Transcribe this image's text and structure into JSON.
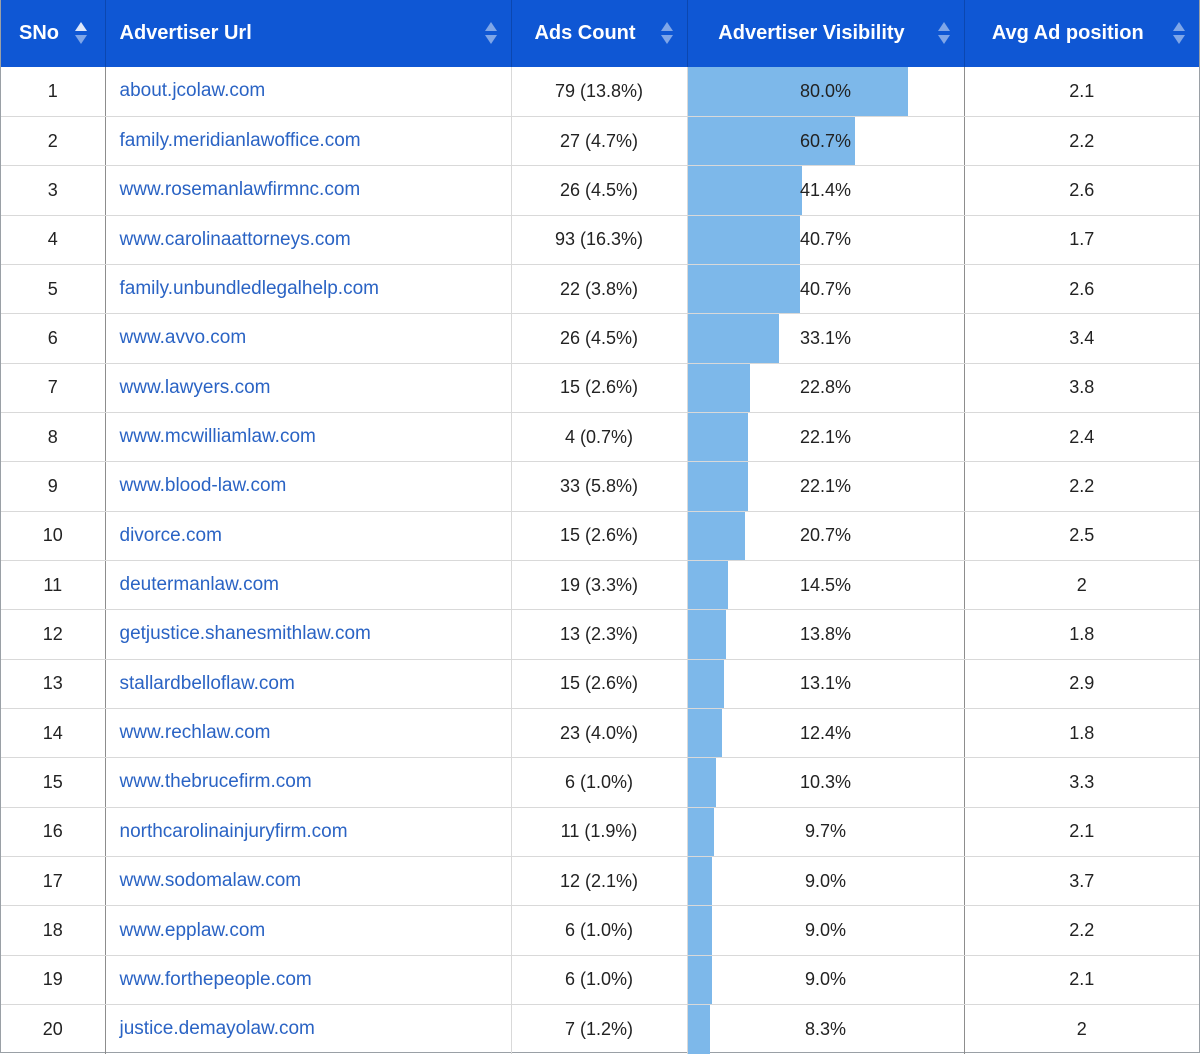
{
  "table": {
    "headers": {
      "sno": "SNo",
      "url": "Advertiser Url",
      "ads": "Ads Count",
      "visibility": "Advertiser Visibility",
      "position": "Avg Ad position"
    },
    "colors": {
      "header_bg": "#0f57d4",
      "bar": "#7db8ea",
      "link": "#2a63c4"
    },
    "sort_icon": "sort-arrows-icon",
    "rows": [
      {
        "sno": "1",
        "url": "about.jcolaw.com",
        "ads": "79 (13.8%)",
        "visibility": "80.0%",
        "vis_value": 80.0,
        "position": "2.1"
      },
      {
        "sno": "2",
        "url": "family.meridianlawoffice.com",
        "ads": "27 (4.7%)",
        "visibility": "60.7%",
        "vis_value": 60.7,
        "position": "2.2"
      },
      {
        "sno": "3",
        "url": "www.rosemanlawfirmnc.com",
        "ads": "26 (4.5%)",
        "visibility": "41.4%",
        "vis_value": 41.4,
        "position": "2.6"
      },
      {
        "sno": "4",
        "url": "www.carolinaattorneys.com",
        "ads": "93 (16.3%)",
        "visibility": "40.7%",
        "vis_value": 40.7,
        "position": "1.7"
      },
      {
        "sno": "5",
        "url": "family.unbundledlegalhelp.com",
        "ads": "22 (3.8%)",
        "visibility": "40.7%",
        "vis_value": 40.7,
        "position": "2.6"
      },
      {
        "sno": "6",
        "url": "www.avvo.com",
        "ads": "26 (4.5%)",
        "visibility": "33.1%",
        "vis_value": 33.1,
        "position": "3.4"
      },
      {
        "sno": "7",
        "url": "www.lawyers.com",
        "ads": "15 (2.6%)",
        "visibility": "22.8%",
        "vis_value": 22.8,
        "position": "3.8"
      },
      {
        "sno": "8",
        "url": "www.mcwilliamlaw.com",
        "ads": "4 (0.7%)",
        "visibility": "22.1%",
        "vis_value": 22.1,
        "position": "2.4"
      },
      {
        "sno": "9",
        "url": "www.blood-law.com",
        "ads": "33 (5.8%)",
        "visibility": "22.1%",
        "vis_value": 22.1,
        "position": "2.2"
      },
      {
        "sno": "10",
        "url": "divorce.com",
        "ads": "15 (2.6%)",
        "visibility": "20.7%",
        "vis_value": 20.7,
        "position": "2.5"
      },
      {
        "sno": "11",
        "url": "deutermanlaw.com",
        "ads": "19 (3.3%)",
        "visibility": "14.5%",
        "vis_value": 14.5,
        "position": "2"
      },
      {
        "sno": "12",
        "url": "getjustice.shanesmithlaw.com",
        "ads": "13 (2.3%)",
        "visibility": "13.8%",
        "vis_value": 13.8,
        "position": "1.8"
      },
      {
        "sno": "13",
        "url": "stallardbelloflaw.com",
        "ads": "15 (2.6%)",
        "visibility": "13.1%",
        "vis_value": 13.1,
        "position": "2.9"
      },
      {
        "sno": "14",
        "url": "www.rechlaw.com",
        "ads": "23 (4.0%)",
        "visibility": "12.4%",
        "vis_value": 12.4,
        "position": "1.8"
      },
      {
        "sno": "15",
        "url": "www.thebrucefirm.com",
        "ads": "6 (1.0%)",
        "visibility": "10.3%",
        "vis_value": 10.3,
        "position": "3.3"
      },
      {
        "sno": "16",
        "url": "northcarolinainjuryfirm.com",
        "ads": "11 (1.9%)",
        "visibility": "9.7%",
        "vis_value": 9.7,
        "position": "2.1"
      },
      {
        "sno": "17",
        "url": "www.sodomalaw.com",
        "ads": "12 (2.1%)",
        "visibility": "9.0%",
        "vis_value": 9.0,
        "position": "3.7"
      },
      {
        "sno": "18",
        "url": "www.epplaw.com",
        "ads": "6 (1.0%)",
        "visibility": "9.0%",
        "vis_value": 9.0,
        "position": "2.2"
      },
      {
        "sno": "19",
        "url": "www.forthepeople.com",
        "ads": "6 (1.0%)",
        "visibility": "9.0%",
        "vis_value": 9.0,
        "position": "2.1"
      },
      {
        "sno": "20",
        "url": "justice.demayolaw.com",
        "ads": "7 (1.2%)",
        "visibility": "8.3%",
        "vis_value": 8.3,
        "position": "2"
      }
    ]
  }
}
